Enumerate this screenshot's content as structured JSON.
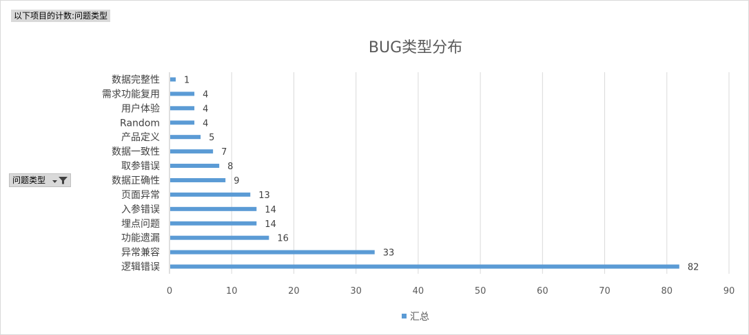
{
  "pivot": {
    "values_field": "以下项目的计数:问题类型",
    "row_field": "问题类型",
    "filter_icon": "filter-dropdown-icon"
  },
  "chart_data": {
    "type": "bar",
    "orientation": "horizontal",
    "title": "BUG类型分布",
    "categories": [
      "逻辑错误",
      "异常兼容",
      "功能遗漏",
      "埋点问题",
      "入参错误",
      "页面异常",
      "数据正确性",
      "取参错误",
      "数据一致性",
      "产品定义",
      "Random",
      "用户体验",
      "需求功能复用",
      "数据完整性"
    ],
    "series": [
      {
        "name": "汇总",
        "values": [
          82,
          33,
          16,
          14,
          14,
          13,
          9,
          8,
          7,
          5,
          4,
          4,
          4,
          1
        ],
        "color": "#5b9bd5"
      }
    ],
    "xlim": [
      0,
      90
    ],
    "xticks": [
      0,
      10,
      20,
      30,
      40,
      50,
      60,
      70,
      80,
      90
    ],
    "grid": true,
    "legend": "bottom",
    "colors": {
      "bar": "#5b9bd5",
      "grid": "#d9d9d9",
      "axis": "#bfbfbf"
    }
  }
}
